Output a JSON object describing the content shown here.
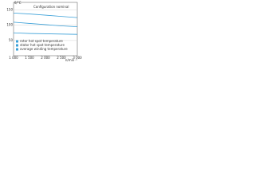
{
  "chart_data": {
    "type": "line",
    "y_label": "θ/°C",
    "x_label": "n/min⁻¹",
    "annotation": "Configuration nominal",
    "x": [
      1000,
      1500,
      2000,
      2500,
      3000
    ],
    "series": [
      {
        "name": "rotor hot spot temperature",
        "color": "#3aa0d8",
        "values": [
          140,
          137,
          133,
          129,
          125
        ]
      },
      {
        "name": "stator hot spot temperature",
        "color": "#3aa0d8",
        "values": [
          110,
          106,
          102,
          98,
          95
        ]
      },
      {
        "name": "average winding temperature",
        "color": "#3aa0d8",
        "values": [
          75,
          73,
          72,
          71,
          70
        ]
      }
    ],
    "xlim": [
      1000,
      3000
    ],
    "xticks": [
      {
        "value": 1000,
        "label": "1 000"
      },
      {
        "value": 1500,
        "label": "1 500"
      },
      {
        "value": 2000,
        "label": "2 000"
      },
      {
        "value": 2500,
        "label": "2 500"
      },
      {
        "value": 3000,
        "label": "3 000"
      }
    ],
    "ylim": [
      0,
      175
    ],
    "yticks": [
      50,
      100,
      150
    ],
    "grid": true
  }
}
